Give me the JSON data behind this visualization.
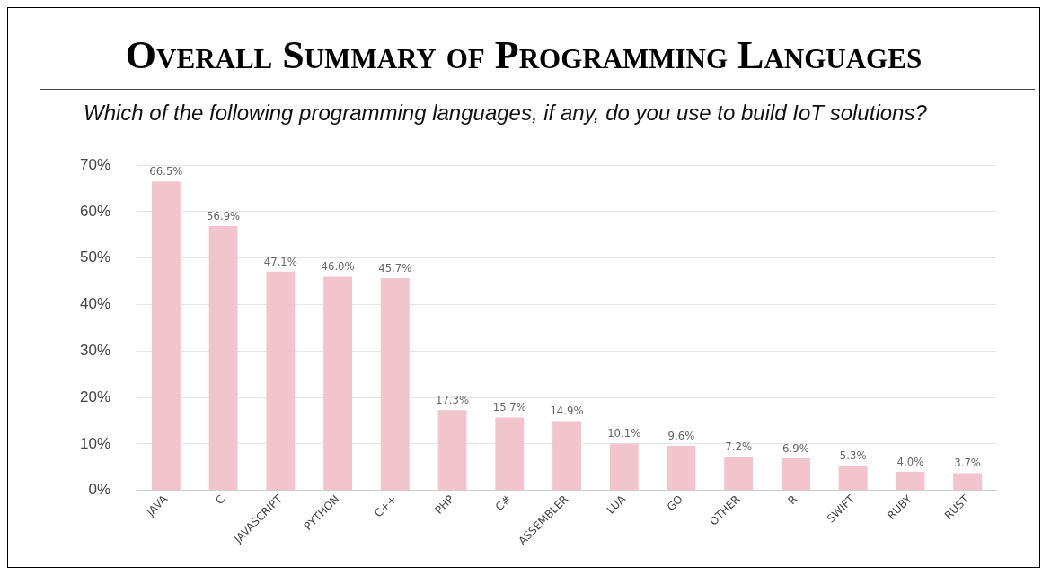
{
  "chart_data": {
    "type": "bar",
    "title": "Overall Summary of Programming Languages",
    "subtitle": "Which of the following programming languages, if any, do you use to build IoT solutions?",
    "categories": [
      "JAVA",
      "C",
      "JAVASCRIPT",
      "PYTHON",
      "C++",
      "PHP",
      "C#",
      "ASSEMBLER",
      "LUA",
      "GO",
      "OTHER",
      "R",
      "SWIFT",
      "RUBY",
      "RUST"
    ],
    "values": [
      66.5,
      56.9,
      47.1,
      46.0,
      45.7,
      17.3,
      15.7,
      14.9,
      10.1,
      9.6,
      7.2,
      6.9,
      5.3,
      4.0,
      3.7
    ],
    "value_labels": [
      "66.5%",
      "56.9%",
      "47.1%",
      "46.0%",
      "45.7%",
      "17.3%",
      "15.7%",
      "14.9%",
      "10.1%",
      "9.6%",
      "7.2%",
      "6.9%",
      "5.3%",
      "4.0%",
      "3.7%"
    ],
    "color": "#f2c4cd",
    "ylim": [
      0,
      70
    ],
    "yticks": [
      {
        "value": 0,
        "label": "0%"
      },
      {
        "value": 10,
        "label": "10%"
      },
      {
        "value": 20,
        "label": "20%"
      },
      {
        "value": 30,
        "label": "30%"
      },
      {
        "value": 40,
        "label": "40%"
      },
      {
        "value": 50,
        "label": "50%"
      },
      {
        "value": 60,
        "label": "60%"
      },
      {
        "value": 70,
        "label": "70%"
      }
    ],
    "grid": "y",
    "legend": false
  }
}
